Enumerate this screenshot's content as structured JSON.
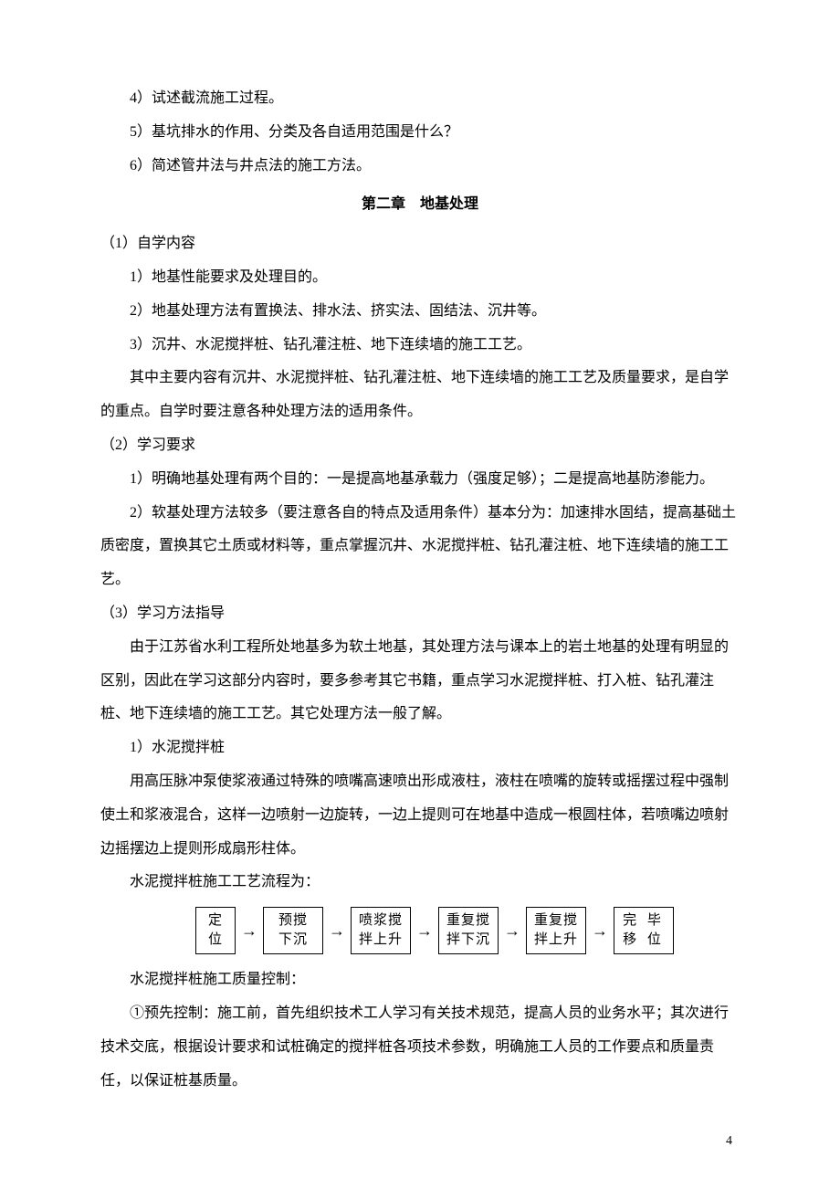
{
  "q4": "4）试述截流施工过程。",
  "q5": "5）基坑排水的作用、分类及各自适用范围是什么？",
  "q6": "6）简述管井法与井点法的施工方法。",
  "chapter_title": "第二章　地基处理",
  "s1_h": "（1）自学内容",
  "s1_1": "1）地基性能要求及处理目的。",
  "s1_2": "2）地基处理方法有置换法、排水法、挤实法、固结法、沉井等。",
  "s1_3": "3）沉井、水泥搅拌桩、钻孔灌注桩、地下连续墙的施工工艺。",
  "s1_p": "其中主要内容有沉井、水泥搅拌桩、钻孔灌注桩、地下连续墙的施工工艺及质量要求，是自学的重点。自学时要注意各种处理方法的适用条件。",
  "s2_h": "（2）学习要求",
  "s2_1": "1）明确地基处理有两个目的：一是提高地基承载力（强度足够）；二是提高地基防渗能力。",
  "s2_2": "2）软基处理方法较多（要注意各自的特点及适用条件）基本分为：加速排水固结，提高基础土质密度，置换其它土质或材料等，重点掌握沉井、水泥搅拌桩、钻孔灌注桩、地下连续墙的施工工艺。",
  "s3_h": "（3）学习方法指导",
  "s3_p1": "由于江苏省水利工程所处地基多为软土地基，其处理方法与课本上的岩土地基的处理有明显的区别，因此在学习这部分内容时，要多参考其它书籍，重点学习水泥搅拌桩、打入桩、钻孔灌注桩、地下连续墙的施工工艺。其它处理方法一般了解。",
  "s3_1h": "1）水泥搅拌桩",
  "s3_1p": "用高压脉冲泵使浆液通过特殊的喷嘴高速喷出形成液柱，液柱在喷嘴的旋转或摇摆过程中强制使土和浆液混合，这样一边喷射一边旋转，一边上提则可在地基中造成一根圆柱体，若喷嘴边喷射边摇摆边上提则形成扇形柱体。",
  "flow_label": "水泥搅拌桩施工工艺流程为：",
  "flow": {
    "nodes": [
      "定\n位",
      "预搅\n下沉",
      "喷浆搅\n拌上升",
      "重复搅\n拌下沉",
      "重复搅\n拌上升",
      "完 毕\n移 位"
    ],
    "arrow": "→",
    "border_color": "#000000"
  },
  "qc_h": "水泥搅拌桩施工质量控制：",
  "qc_1": "①预先控制：施工前，首先组织技术工人学习有关技术规范，提高人员的业务水平；其次进行技术交底，根据设计要求和试桩确定的搅拌桩各项技术参数，明确施工人员的工作要点和质量责任，以保证桩基质量。",
  "page_num": "4"
}
